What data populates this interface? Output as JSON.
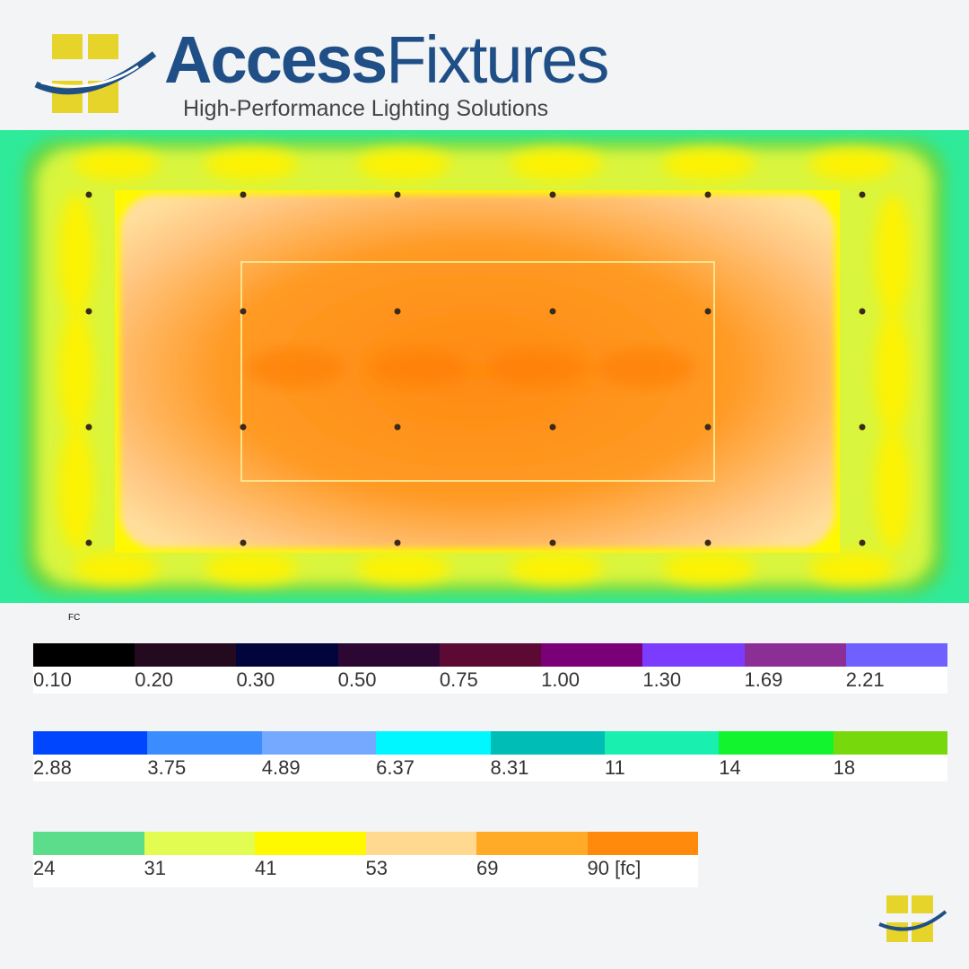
{
  "brand": {
    "name_bold": "Access",
    "name_light": "Fixtures",
    "tagline": "High-Performance Lighting Solutions",
    "colors": {
      "blue": "#1f4f86",
      "yellow": "#e6d42a"
    }
  },
  "legend": {
    "unit_label": "FC",
    "rows": [
      {
        "colors": [
          "#000000",
          "#230a1f",
          "#02043c",
          "#2c0733",
          "#5c0a34",
          "#7a0078",
          "#7c3cff",
          "#8b2f96",
          "#6f60ff"
        ],
        "labels": [
          "0.10",
          "0.20",
          "0.30",
          "0.50",
          "0.75",
          "1.00",
          "1.30",
          "1.69",
          "2.21"
        ]
      },
      {
        "colors": [
          "#0046ff",
          "#3a8cff",
          "#74a9ff",
          "#00f7ff",
          "#00bdb5",
          "#19f0b0",
          "#12f52e",
          "#77d90c"
        ],
        "labels": [
          "2.88",
          "3.75",
          "4.89",
          "6.37",
          "8.31",
          "11",
          "14",
          "18"
        ]
      },
      {
        "colors": [
          "#5cdd8b",
          "#e2fc52",
          "#fff900",
          "#ffd98f",
          "#ffab27",
          "#ff8a0b"
        ],
        "labels": [
          "24",
          "31",
          "41",
          "53",
          "69",
          "90 [fc]"
        ]
      }
    ]
  }
}
